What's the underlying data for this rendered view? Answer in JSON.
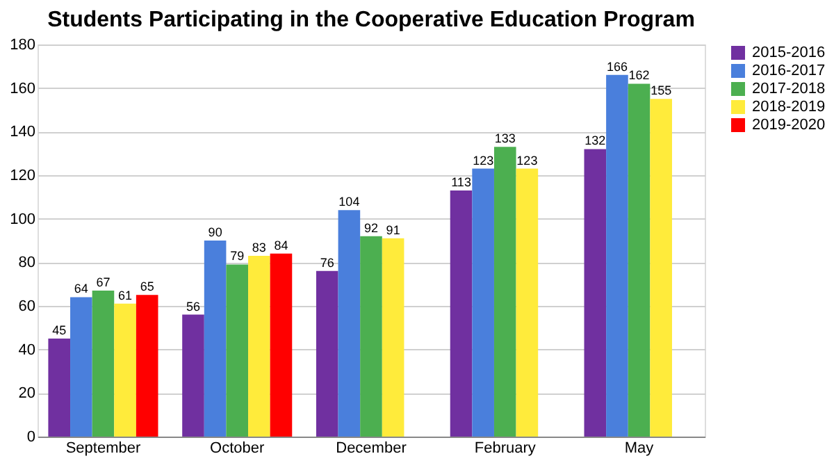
{
  "chart_data": {
    "type": "bar",
    "title": "Students Participating in the Cooperative Education Program",
    "categories": [
      "September",
      "October",
      "December",
      "February",
      "May"
    ],
    "series": [
      {
        "name": "2015-2016",
        "color": "#7030a0",
        "values": [
          45,
          56,
          76,
          113,
          132
        ]
      },
      {
        "name": "2016-2017",
        "color": "#4a7fdc",
        "values": [
          64,
          90,
          104,
          123,
          166
        ]
      },
      {
        "name": "2017-2018",
        "color": "#4caf50",
        "values": [
          67,
          79,
          92,
          133,
          162
        ]
      },
      {
        "name": "2018-2019",
        "color": "#ffeb3b",
        "values": [
          61,
          83,
          91,
          123,
          155
        ]
      },
      {
        "name": "2019-2020",
        "color": "#ff0000",
        "values": [
          65,
          84,
          null,
          null,
          null
        ]
      }
    ],
    "ylim": [
      0,
      180
    ],
    "yticks": [
      0,
      20,
      40,
      60,
      80,
      100,
      120,
      140,
      160,
      180
    ],
    "grid": "y",
    "legend": "right",
    "data_labels": true
  }
}
